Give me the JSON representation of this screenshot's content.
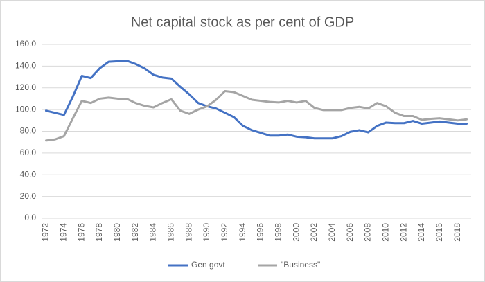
{
  "chart_data": {
    "type": "line",
    "title": "Net capital stock as per cent of GDP",
    "categories": [
      "1972",
      null,
      "1974",
      null,
      "1976",
      null,
      "1978",
      null,
      "1980",
      null,
      "1982",
      null,
      "1984",
      null,
      "1986",
      null,
      "1988",
      null,
      "1990",
      null,
      "1992",
      null,
      "1994",
      null,
      "1996",
      null,
      "1998",
      null,
      "2000",
      null,
      "2002",
      null,
      "2004",
      null,
      "2006",
      null,
      "2008",
      null,
      "2010",
      null,
      "2012",
      null,
      "2014",
      null,
      "2016",
      null,
      "2018",
      null
    ],
    "series": [
      {
        "name": "Gen govt",
        "color": "#4472c4",
        "values": [
          99,
          97,
          95,
          112,
          131,
          129,
          138,
          144,
          144.5,
          145,
          142,
          138,
          132,
          129.5,
          128.5,
          121,
          114,
          106,
          103,
          101,
          97,
          93,
          85,
          81,
          78.5,
          76,
          76,
          77,
          75,
          74.5,
          73.5,
          73.5,
          73.5,
          75.5,
          79.5,
          81,
          79,
          85,
          88,
          87.5,
          87.5,
          89.5,
          87,
          88,
          89,
          88,
          87,
          87
        ]
      },
      {
        "name": "\"Business\"",
        "color": "#a5a5a5",
        "values": [
          71.5,
          72.5,
          75.5,
          92,
          108,
          106,
          110,
          111,
          110,
          110,
          106,
          103.5,
          102,
          106,
          109.5,
          99,
          96,
          100,
          103,
          109,
          117,
          116,
          112.5,
          109,
          108,
          107,
          106.5,
          108,
          106.5,
          108,
          101.5,
          99.5,
          99.5,
          99.5,
          101.5,
          102.5,
          101,
          106,
          103,
          97,
          94,
          94,
          90.5,
          91.5,
          92,
          91,
          90,
          91
        ]
      }
    ],
    "ylim": [
      0,
      160
    ],
    "yticks": [
      {
        "value": 0,
        "label": "0.0"
      },
      {
        "value": 20,
        "label": "20.0"
      },
      {
        "value": 40,
        "label": "40.0"
      },
      {
        "value": 60,
        "label": "60.0"
      },
      {
        "value": 80,
        "label": "80.0"
      },
      {
        "value": 100,
        "label": "100.0"
      },
      {
        "value": 120,
        "label": "120.0"
      },
      {
        "value": 140,
        "label": "140.0"
      },
      {
        "value": 160,
        "label": "160.0"
      }
    ],
    "grid": true,
    "legend": "bottom"
  }
}
